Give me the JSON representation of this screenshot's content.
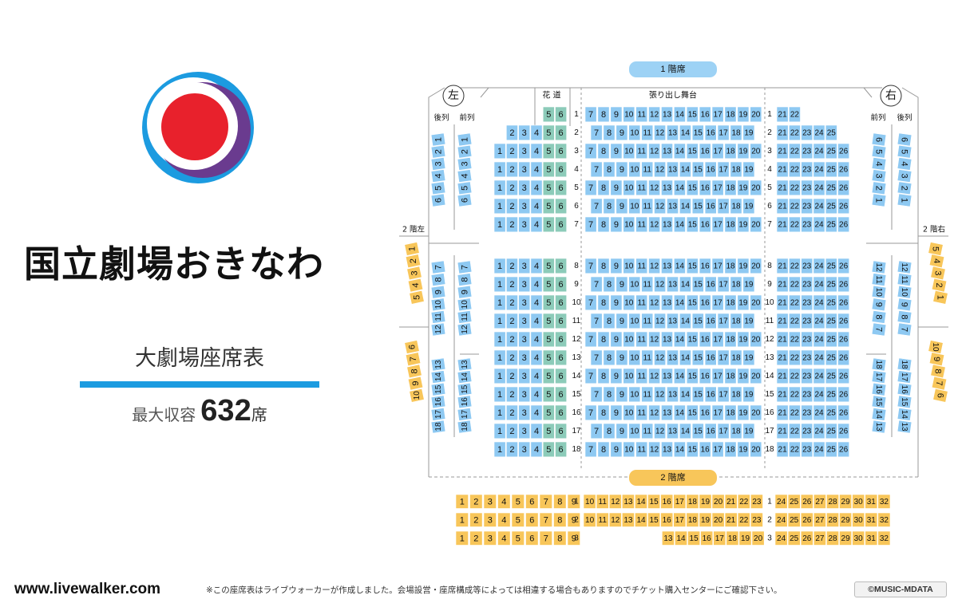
{
  "venue": {
    "name": "国立劇場おきなわ",
    "chart_title": "大劇場座席表",
    "capacity_label": "最大収容",
    "capacity_number": "632",
    "capacity_unit": "席"
  },
  "footer": {
    "url": "www.livewalker.com",
    "note": "※この座席表はライブウォーカーが作成しました。会場設営・座席構成等によっては相違する場合もありますのでチケット購入センターにご確認下さい。",
    "copyright": "©MUSIC-MDATA"
  },
  "labels": {
    "floor1": "1 階席",
    "floor2": "2 階席",
    "left": "左",
    "right": "右",
    "hanamichi": "花 道",
    "stage": "張り出し舞台",
    "rear": "後列",
    "front": "前列",
    "balcony_left": "2 階左",
    "balcony_right": "2 階右"
  },
  "colors": {
    "floor1_seat": "#8ec9f2",
    "hanamichi_seat": "#8ccbb9",
    "floor2_seat": "#f8c65a",
    "floor1_badge": "#9dd2f5",
    "floor2_badge": "#f8c65a",
    "logo_blue": "#1c9be0",
    "logo_purple": "#6a3b8f",
    "logo_red": "#e8212c"
  },
  "floor1_rows": [
    {
      "row": "1",
      "left": [
        5,
        6
      ],
      "center": [
        7,
        8,
        9,
        10,
        11,
        12,
        13,
        14,
        15,
        16,
        17,
        18,
        19,
        20
      ],
      "right": [
        21,
        22
      ]
    },
    {
      "row": "2",
      "left": [
        2,
        3,
        4,
        5,
        6
      ],
      "center": [
        7,
        8,
        9,
        10,
        11,
        12,
        13,
        14,
        15,
        16,
        17,
        18,
        19
      ],
      "right": [
        21,
        22,
        23,
        24,
        25
      ]
    },
    {
      "row": "3",
      "left": [
        1,
        2,
        3,
        4,
        5,
        6
      ],
      "center": [
        7,
        8,
        9,
        10,
        11,
        12,
        13,
        14,
        15,
        16,
        17,
        18,
        19,
        20
      ],
      "right": [
        21,
        22,
        23,
        24,
        25,
        26
      ]
    },
    {
      "row": "4",
      "left": [
        1,
        2,
        3,
        4,
        5,
        6
      ],
      "center": [
        7,
        8,
        9,
        10,
        11,
        12,
        13,
        14,
        15,
        16,
        17,
        18,
        19
      ],
      "right": [
        21,
        22,
        23,
        24,
        25,
        26
      ]
    },
    {
      "row": "5",
      "left": [
        1,
        2,
        3,
        4,
        5,
        6
      ],
      "center": [
        7,
        8,
        9,
        10,
        11,
        12,
        13,
        14,
        15,
        16,
        17,
        18,
        19,
        20
      ],
      "right": [
        21,
        22,
        23,
        24,
        25,
        26
      ]
    },
    {
      "row": "6",
      "left": [
        1,
        2,
        3,
        4,
        5,
        6
      ],
      "center": [
        7,
        8,
        9,
        10,
        11,
        12,
        13,
        14,
        15,
        16,
        17,
        18,
        19
      ],
      "right": [
        21,
        22,
        23,
        24,
        25,
        26
      ]
    },
    {
      "row": "7",
      "left": [
        1,
        2,
        3,
        4,
        5,
        6
      ],
      "center": [
        7,
        8,
        9,
        10,
        11,
        12,
        13,
        14,
        15,
        16,
        17,
        18,
        19,
        20
      ],
      "right": [
        21,
        22,
        23,
        24,
        25,
        26
      ]
    },
    {
      "row": "8",
      "left": [
        1,
        2,
        3,
        4,
        5,
        6
      ],
      "center": [
        7,
        8,
        9,
        10,
        11,
        12,
        13,
        14,
        15,
        16,
        17,
        18,
        19,
        20
      ],
      "right": [
        21,
        22,
        23,
        24,
        25,
        26
      ]
    },
    {
      "row": "9",
      "left": [
        1,
        2,
        3,
        4,
        5,
        6
      ],
      "center": [
        7,
        8,
        9,
        10,
        11,
        12,
        13,
        14,
        15,
        16,
        17,
        18,
        19
      ],
      "right": [
        21,
        22,
        23,
        24,
        25,
        26
      ]
    },
    {
      "row": "10",
      "left": [
        1,
        2,
        3,
        4,
        5,
        6
      ],
      "center": [
        7,
        8,
        9,
        10,
        11,
        12,
        13,
        14,
        15,
        16,
        17,
        18,
        19,
        20
      ],
      "right": [
        21,
        22,
        23,
        24,
        25,
        26
      ]
    },
    {
      "row": "11",
      "left": [
        1,
        2,
        3,
        4,
        5,
        6
      ],
      "center": [
        7,
        8,
        9,
        10,
        11,
        12,
        13,
        14,
        15,
        16,
        17,
        18,
        19
      ],
      "right": [
        21,
        22,
        23,
        24,
        25,
        26
      ]
    },
    {
      "row": "12",
      "left": [
        1,
        2,
        3,
        4,
        5,
        6
      ],
      "center": [
        7,
        8,
        9,
        10,
        11,
        12,
        13,
        14,
        15,
        16,
        17,
        18,
        19,
        20
      ],
      "right": [
        21,
        22,
        23,
        24,
        25,
        26
      ]
    },
    {
      "row": "13",
      "left": [
        1,
        2,
        3,
        4,
        5,
        6
      ],
      "center": [
        7,
        8,
        9,
        10,
        11,
        12,
        13,
        14,
        15,
        16,
        17,
        18,
        19
      ],
      "right": [
        21,
        22,
        23,
        24,
        25,
        26
      ]
    },
    {
      "row": "14",
      "left": [
        1,
        2,
        3,
        4,
        5,
        6
      ],
      "center": [
        7,
        8,
        9,
        10,
        11,
        12,
        13,
        14,
        15,
        16,
        17,
        18,
        19,
        20
      ],
      "right": [
        21,
        22,
        23,
        24,
        25,
        26
      ]
    },
    {
      "row": "15",
      "left": [
        1,
        2,
        3,
        4,
        5,
        6
      ],
      "center": [
        7,
        8,
        9,
        10,
        11,
        12,
        13,
        14,
        15,
        16,
        17,
        18,
        19
      ],
      "right": [
        21,
        22,
        23,
        24,
        25,
        26
      ]
    },
    {
      "row": "16",
      "left": [
        1,
        2,
        3,
        4,
        5,
        6
      ],
      "center": [
        7,
        8,
        9,
        10,
        11,
        12,
        13,
        14,
        15,
        16,
        17,
        18,
        19,
        20
      ],
      "right": [
        21,
        22,
        23,
        24,
        25,
        26
      ]
    },
    {
      "row": "17",
      "left": [
        1,
        2,
        3,
        4,
        5,
        6
      ],
      "center": [
        7,
        8,
        9,
        10,
        11,
        12,
        13,
        14,
        15,
        16,
        17,
        18,
        19
      ],
      "right": [
        21,
        22,
        23,
        24,
        25,
        26
      ]
    },
    {
      "row": "18",
      "left": [
        1,
        2,
        3,
        4,
        5,
        6
      ],
      "center": [
        7,
        8,
        9,
        10,
        11,
        12,
        13,
        14,
        15,
        16,
        17,
        18,
        19,
        20
      ],
      "right": [
        21,
        22,
        23,
        24,
        25,
        26
      ]
    }
  ],
  "hanamichi_seats": [
    5,
    6
  ],
  "side_boxes": {
    "left_rear": [
      [
        1,
        2,
        3,
        4,
        5,
        6
      ],
      [
        7,
        8,
        9,
        10,
        11,
        12
      ],
      [
        13,
        14,
        15,
        16,
        17,
        18
      ]
    ],
    "left_front": [
      [
        1,
        2,
        3,
        4,
        5,
        6
      ],
      [
        7,
        8,
        9,
        10,
        11,
        12
      ],
      [
        13,
        14,
        15,
        16,
        17,
        18
      ]
    ],
    "right_front": [
      [
        1,
        2,
        3,
        4,
        5,
        6
      ],
      [
        7,
        8,
        9,
        10,
        11,
        12
      ],
      [
        13,
        14,
        15,
        16,
        17,
        18
      ]
    ],
    "right_rear": [
      [
        1,
        2,
        3,
        4,
        5,
        6
      ],
      [
        7,
        8,
        9,
        10,
        11,
        12
      ],
      [
        13,
        14,
        15,
        16,
        17,
        18
      ]
    ]
  },
  "balcony": {
    "left": [
      [
        1,
        2,
        3,
        4,
        5
      ],
      [
        6,
        7,
        8,
        9,
        10
      ]
    ],
    "right": [
      [
        1,
        2,
        3,
        4,
        5
      ],
      [
        6,
        7,
        8,
        9,
        10
      ]
    ]
  },
  "floor2_rows": [
    {
      "row": "1",
      "left": [
        1,
        2,
        3,
        4,
        5,
        6,
        7,
        8,
        9
      ],
      "center": [
        10,
        11,
        12,
        13,
        14,
        15,
        16,
        17,
        18,
        19,
        20,
        21,
        22,
        23
      ],
      "right": [
        24,
        25,
        26,
        27,
        28,
        29,
        30,
        31,
        32
      ]
    },
    {
      "row": "2",
      "left": [
        1,
        2,
        3,
        4,
        5,
        6,
        7,
        8,
        9
      ],
      "center": [
        10,
        11,
        12,
        13,
        14,
        15,
        16,
        17,
        18,
        19,
        20,
        21,
        22,
        23
      ],
      "right": [
        24,
        25,
        26,
        27,
        28,
        29,
        30,
        31,
        32
      ]
    },
    {
      "row": "3",
      "left": [
        1,
        2,
        3,
        4,
        5,
        6,
        7,
        8,
        9
      ],
      "center": [
        13,
        14,
        15,
        16,
        17,
        18,
        19,
        20
      ],
      "right": [
        24,
        25,
        26,
        27,
        28,
        29,
        30,
        31,
        32
      ]
    }
  ]
}
